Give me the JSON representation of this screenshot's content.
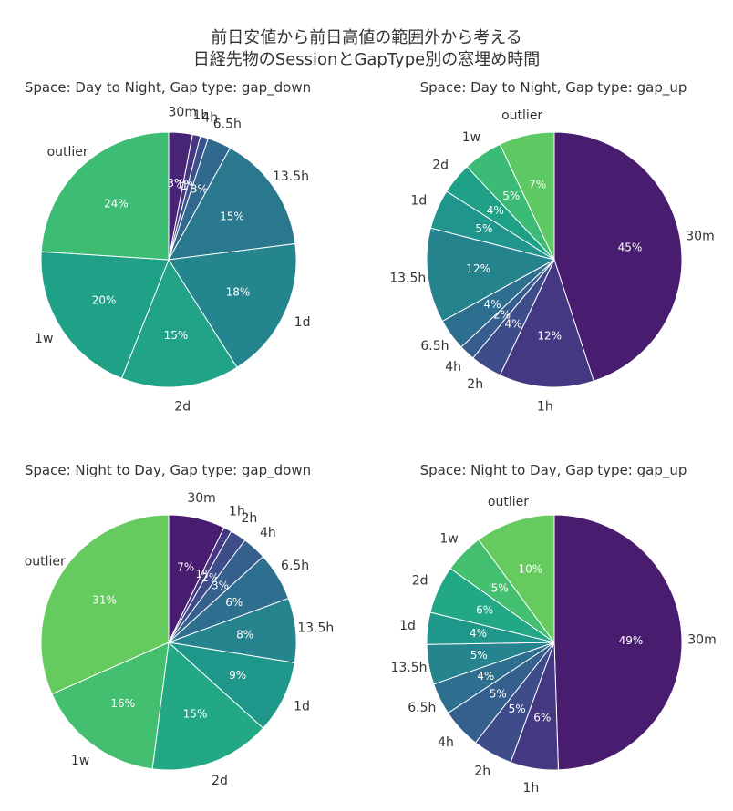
{
  "title": {
    "line1": "前日安値から前日高値の範囲外から考える",
    "line2": "日経先物のSessionとGapType別の窓埋め時間"
  },
  "chart_data": [
    {
      "type": "pie",
      "title": "Space: Day to Night,  Gap type: gap_down",
      "labels": [
        "30m",
        "1h",
        "4h",
        "6.5h",
        "13.5h",
        "1d",
        "2d",
        "1w",
        "outlier"
      ],
      "values": [
        3,
        1,
        1,
        3,
        15,
        18,
        15,
        20,
        24
      ],
      "percent_labels": [
        "3%",
        "1%",
        "1%",
        "3%",
        "15%",
        "18%",
        "15%",
        "20%",
        "24%"
      ],
      "colors": [
        "#482475",
        "#453781",
        "#3b518b",
        "#31688e",
        "#2a788e",
        "#25858e",
        "#20a386",
        "#1fa187",
        "#3dbc74"
      ]
    },
    {
      "type": "pie",
      "title": "Space: Day to Night,  Gap type: gap_up",
      "labels": [
        "30m",
        "1h",
        "2h",
        "4h",
        "6.5h",
        "13.5h",
        "1d",
        "2d",
        "1w",
        "outlier"
      ],
      "values": [
        45,
        12,
        4,
        2,
        4,
        12,
        5,
        4,
        5,
        7
      ],
      "percent_labels": [
        "45%",
        "12%",
        "4%",
        "2%",
        "4%",
        "12%",
        "5%",
        "4%",
        "5%",
        "7%"
      ],
      "colors": [
        "#481c6e",
        "#453882",
        "#3e4c8a",
        "#365d8d",
        "#2e6e8e",
        "#25838e",
        "#1f958b",
        "#1fa187",
        "#3bbb75",
        "#5ec962"
      ]
    },
    {
      "type": "pie",
      "title": "Space: Night to Day,  Gap type: gap_down",
      "labels": [
        "30m",
        "1h",
        "2h",
        "4h",
        "6.5h",
        "13.5h",
        "1d",
        "2d",
        "1w",
        "outlier"
      ],
      "values": [
        7,
        1,
        2,
        3,
        6,
        8,
        9,
        15,
        16,
        31
      ],
      "percent_labels": [
        "7%",
        "1%",
        "2%",
        "3%",
        "6%",
        "8%",
        "9%",
        "15%",
        "16%",
        "31%"
      ],
      "colors": [
        "#481c6e",
        "#453882",
        "#3e4c8a",
        "#355f8d",
        "#2e6e8e",
        "#25848e",
        "#1f988b",
        "#22a884",
        "#44bf70",
        "#65cb5e"
      ]
    },
    {
      "type": "pie",
      "title": "Space: Night to Day,  Gap type: gap_up",
      "labels": [
        "30m",
        "1h",
        "2h",
        "4h",
        "6.5h",
        "13.5h",
        "1d",
        "2d",
        "1w",
        "outlier"
      ],
      "values": [
        49,
        6,
        5,
        5,
        4,
        5,
        4,
        6,
        5,
        10
      ],
      "percent_labels": [
        "49%",
        "6%",
        "5%",
        "5%",
        "4%",
        "5%",
        "4%",
        "6%",
        "5%",
        "10%"
      ],
      "colors": [
        "#481c6e",
        "#453882",
        "#3e4c8a",
        "#355f8d",
        "#2e6e8e",
        "#25848e",
        "#1f988b",
        "#22a884",
        "#44bf70",
        "#65cb5e"
      ]
    }
  ]
}
